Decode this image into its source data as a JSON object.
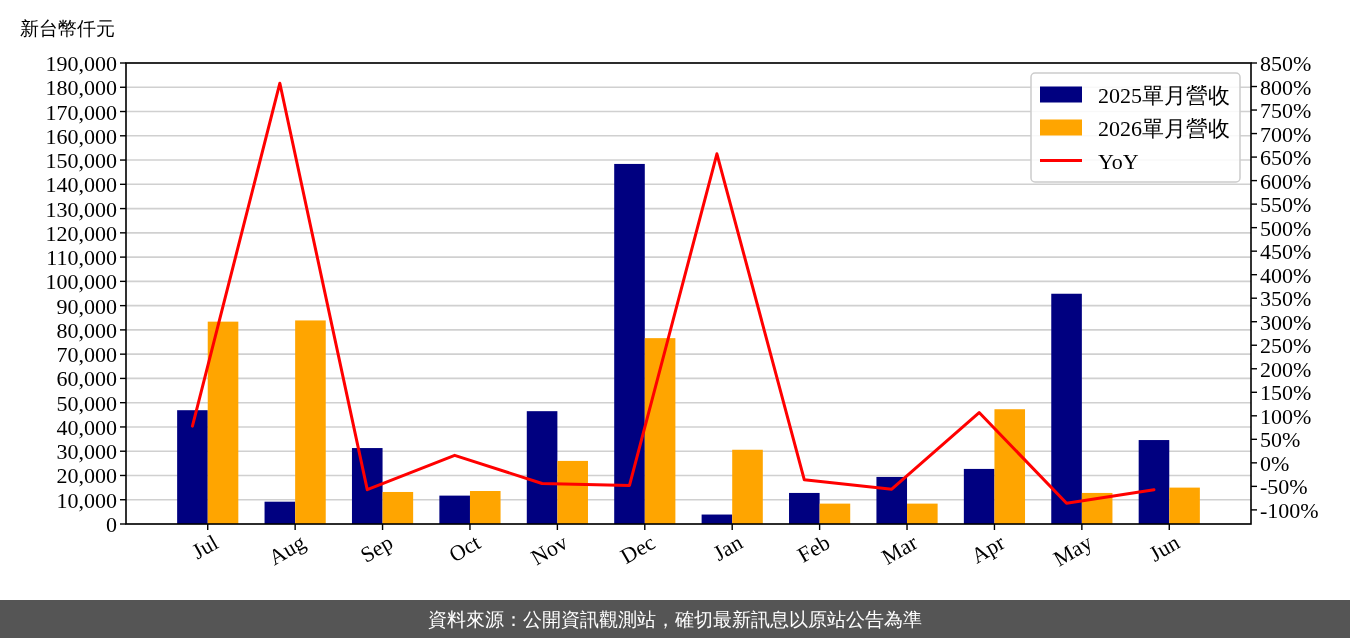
{
  "chart_data": {
    "type": "bar",
    "ylabel": "新台幣仟元",
    "categories": [
      "Jul",
      "Aug",
      "Sep",
      "Oct",
      "Nov",
      "Dec",
      "Jan",
      "Feb",
      "Mar",
      "Apr",
      "May",
      "Jun"
    ],
    "series": [
      {
        "name": "2025單月營收",
        "color": "#000080",
        "values": [
          46900,
          9200,
          31300,
          11700,
          46500,
          148400,
          3900,
          12800,
          19400,
          22700,
          94900,
          34600
        ]
      },
      {
        "name": "2026單月營收",
        "color": "#ffa500",
        "values": [
          83400,
          83900,
          13200,
          13600,
          26000,
          76600,
          30600,
          8400,
          8400,
          47300,
          12800,
          15000
        ]
      },
      {
        "name": "YoY",
        "type": "line",
        "axis": "y2",
        "color": "#ff0000",
        "values": [
          78,
          807,
          -57,
          16,
          -44,
          -48,
          657,
          -36,
          -56,
          107,
          -86,
          -57
        ]
      }
    ],
    "ylim": [
      0,
      190000
    ],
    "yticks": [
      0,
      {
        "value": 10000,
        "label": "10,000"
      },
      {
        "value": 20000,
        "label": "20,000"
      },
      {
        "value": 30000,
        "label": "30,000"
      },
      {
        "value": 40000,
        "label": "40,000"
      },
      {
        "value": 50000,
        "label": "50,000"
      },
      {
        "value": 60000,
        "label": "60,000"
      },
      {
        "value": 70000,
        "label": "70,000"
      },
      {
        "value": 80000,
        "label": "80,000"
      },
      {
        "value": 90000,
        "label": "90,000"
      },
      {
        "value": 100000,
        "label": "100,000"
      },
      {
        "value": 110000,
        "label": "110,000"
      },
      {
        "value": 120000,
        "label": "120,000"
      },
      {
        "value": 130000,
        "label": "130,000"
      },
      {
        "value": 140000,
        "label": "140,000"
      },
      {
        "value": 150000,
        "label": "150,000"
      },
      {
        "value": 160000,
        "label": "160,000"
      },
      {
        "value": 170000,
        "label": "170,000"
      },
      {
        "value": 180000,
        "label": "180,000"
      },
      {
        "value": 190000,
        "label": "190,000"
      }
    ],
    "y2lim": [
      -130,
      850
    ],
    "y2ticks": [
      {
        "value": -100,
        "label": "-100%"
      },
      {
        "value": -50,
        "label": "-50%"
      },
      {
        "value": 0,
        "label": "0%"
      },
      {
        "value": 50,
        "label": "50%"
      },
      {
        "value": 100,
        "label": "100%"
      },
      {
        "value": 150,
        "label": "150%"
      },
      {
        "value": 200,
        "label": "200%"
      },
      {
        "value": 250,
        "label": "250%"
      },
      {
        "value": 300,
        "label": "300%"
      },
      {
        "value": 350,
        "label": "350%"
      },
      {
        "value": 400,
        "label": "400%"
      },
      {
        "value": 450,
        "label": "450%"
      },
      {
        "value": 500,
        "label": "500%"
      },
      {
        "value": 550,
        "label": "550%"
      },
      {
        "value": 600,
        "label": "600%"
      },
      {
        "value": 650,
        "label": "650%"
      },
      {
        "value": 700,
        "label": "700%"
      },
      {
        "value": 750,
        "label": "750%"
      },
      {
        "value": 800,
        "label": "800%"
      },
      {
        "value": 850,
        "label": "850%"
      }
    ],
    "grid": "y",
    "legend": "top right",
    "annotations": [
      "資料來源：公開資訊觀測站，確切最新訊息以原站公告為準"
    ]
  }
}
